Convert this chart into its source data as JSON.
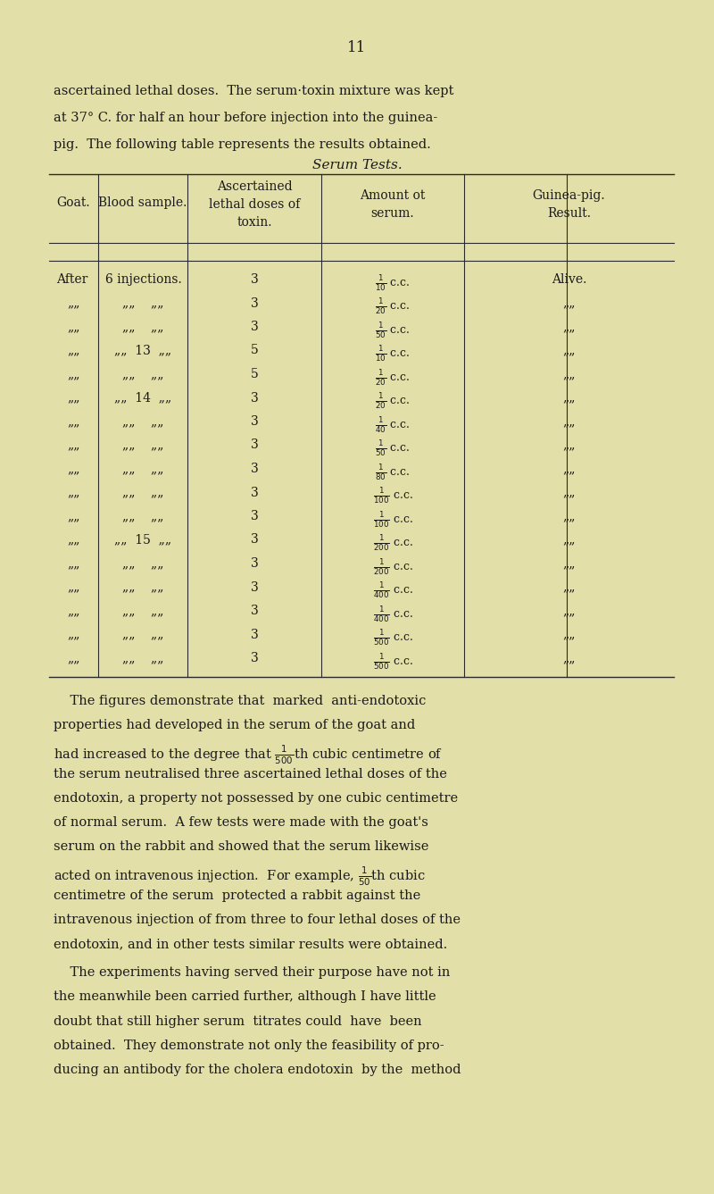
{
  "background_color": "#e3dfa8",
  "page_number": "11",
  "intro_line1": "ascertained lethal doses.  The serum·toxin mixture was kept",
  "intro_line2": "at 37° C. for half an hour before injection into the guinea-",
  "intro_line3": "pig.  The following table represents the results obtained.",
  "table_title": "Serum Tests.",
  "col_headers": [
    "Goat.",
    "Blood sample.",
    "Ascertained\nlethal doses of\ntoxin.",
    "Amount ot\nserum.",
    "Guinea-pig.\nResult."
  ],
  "serum_rows": [
    {
      "goat": "After  6 injections.",
      "doses": "3",
      "serum": "$\\frac{1}{10}$ c.c.",
      "result": "Alive."
    },
    {
      "goat": "„„    „„    „„",
      "doses": "3",
      "serum": "$\\frac{1}{20}$ c.c.",
      "result": "„„"
    },
    {
      "goat": "„„    „„    „„",
      "doses": "3",
      "serum": "$\\frac{1}{50}$ c.c.",
      "result": "„„"
    },
    {
      "goat": "„„   13   „„",
      "doses": "5",
      "serum": "$\\frac{1}{10}$ c.c.",
      "result": "„„"
    },
    {
      "goat": "„„    „„    „„",
      "doses": "5",
      "serum": "$\\frac{1}{20}$ c.c.",
      "result": "„„"
    },
    {
      "goat": "„„   14   „„",
      "doses": "3",
      "serum": "$\\frac{1}{20}$ c.c.",
      "result": "„„"
    },
    {
      "goat": "„„    „„    „„",
      "doses": "3",
      "serum": "$\\frac{1}{40}$ c.c.",
      "result": "„„"
    },
    {
      "goat": "„„    „„    „„",
      "doses": "3",
      "serum": "$\\frac{1}{50}$ c.c.",
      "result": "„„"
    },
    {
      "goat": "„„    „„    „„",
      "doses": "3",
      "serum": "$\\frac{1}{80}$ c.c.",
      "result": "„„"
    },
    {
      "goat": "„„    „„    „„",
      "doses": "3",
      "serum": "$\\frac{1}{100}$ c.c.",
      "result": "„„"
    },
    {
      "goat": "„„    „„    „„",
      "doses": "3",
      "serum": "$\\frac{1}{100}$ c.c.",
      "result": "„„"
    },
    {
      "goat": "„„   15   „„",
      "doses": "3",
      "serum": "$\\frac{1}{200}$ c.c.",
      "result": "„„"
    },
    {
      "goat": "„„    „„    „„",
      "doses": "3",
      "serum": "$\\frac{1}{200}$ c.c.",
      "result": "„„"
    },
    {
      "goat": "„„    „„    „„",
      "doses": "3",
      "serum": "$\\frac{1}{400}$ c.c.",
      "result": "„„"
    },
    {
      "goat": "„„    „„    „„",
      "doses": "3",
      "serum": "$\\frac{1}{400}$ c.c.",
      "result": "„„"
    },
    {
      "goat": "„„    „„    „„",
      "doses": "3",
      "serum": "$\\frac{1}{500}$ c.c.",
      "result": "„„"
    },
    {
      "goat": "„„    „„    „„",
      "doses": "3",
      "serum": "$\\frac{1}{500}$ c.c.",
      "result": "„„"
    }
  ],
  "para1_lines": [
    "    The figures demonstrate that  marked  anti-endotoxic",
    "properties had developed in the serum of the goat and",
    "had increased to the degree that $\\frac{1}{500}$th cubic centimetre of",
    "the serum neutralised three ascertained lethal doses of the",
    "endotoxin, a property not possessed by one cubic centimetre",
    "of normal serum.  A few tests were made with the goat's",
    "serum on the rabbit and showed that the serum likewise",
    "acted on intravenous injection.  For example, $\\frac{1}{50}$th cubic",
    "centimetre of the serum  protected a rabbit against the",
    "intravenous injection of from three to four lethal doses of the",
    "endotoxin, and in other tests similar results were obtained."
  ],
  "para2_lines": [
    "    The experiments having served their purpose have not in",
    "the meanwhile been carried further, although I have little",
    "doubt that still higher serum  titrates could  have  been",
    "obtained.  They demonstrate not only the feasibility of pro-",
    "ducing an antibody for the cholera endotoxin  by the  method"
  ],
  "text_color": "#1a1a1a",
  "line_color": "#2a2a2a"
}
